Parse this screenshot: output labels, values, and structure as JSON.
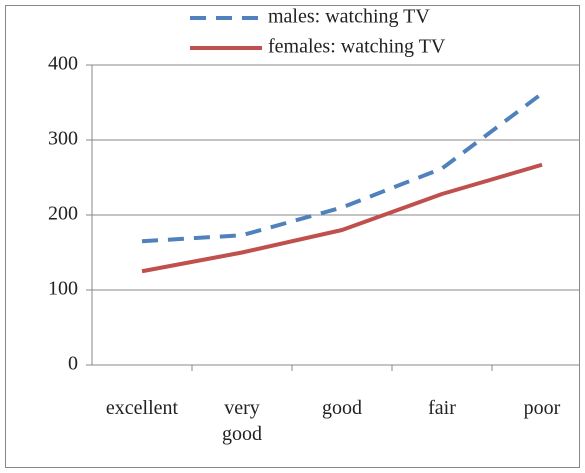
{
  "chart_data": {
    "type": "line",
    "categories": [
      "excellent",
      "very good",
      "good",
      "fair",
      "poor"
    ],
    "series": [
      {
        "name": "males: watching TV",
        "color": "#4f81bd",
        "dash": true,
        "values": [
          165,
          173,
          210,
          262,
          362
        ]
      },
      {
        "name": "females: watching TV",
        "color": "#c0504d",
        "dash": false,
        "values": [
          125,
          150,
          180,
          228,
          267
        ]
      }
    ],
    "ylim": [
      0,
      400
    ],
    "yticks": [
      0,
      100,
      200,
      300,
      400
    ],
    "grid": true
  }
}
